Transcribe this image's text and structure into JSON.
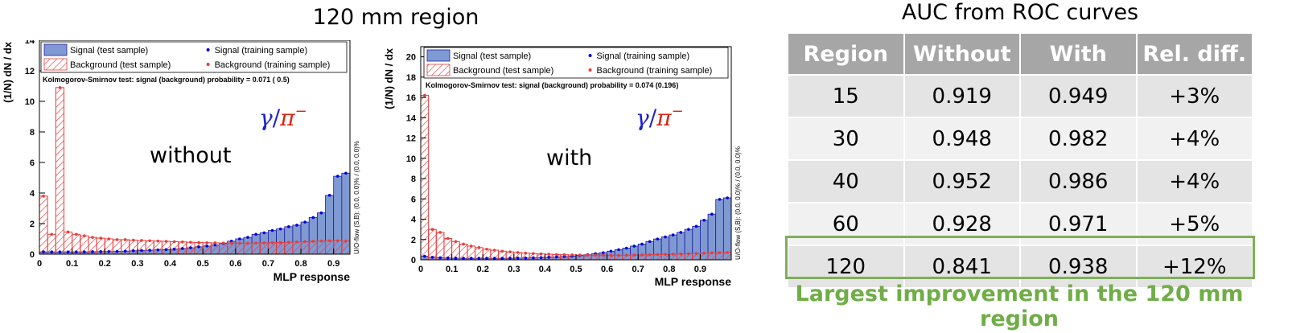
{
  "page": {
    "title": "120 mm region",
    "table_title": "AUC from ROC curves",
    "note": "Largest improvement in the 120 mm region"
  },
  "table": {
    "columns": [
      "Region",
      "Without",
      "With",
      "Rel. diff."
    ],
    "rows": [
      [
        "15",
        "0.919",
        "0.949",
        "+3%"
      ],
      [
        "30",
        "0.948",
        "0.982",
        "+4%"
      ],
      [
        "40",
        "0.952",
        "0.986",
        "+4%"
      ],
      [
        "60",
        "0.928",
        "0.971",
        "+5%"
      ],
      [
        "120",
        "0.841",
        "0.938",
        "+12%"
      ]
    ],
    "highlight_row": 4,
    "highlight_color": "#70ad47"
  },
  "colors": {
    "signal_fill": "#7f99d2",
    "signal_edge": "#1d1d9e",
    "signal_point": "#0000dd",
    "background": "#e83c3c",
    "gamma": "#1f1fcc",
    "pi": "#dd2211"
  },
  "chart_data": [
    {
      "type": "bar",
      "label": "without",
      "formula": {
        "gamma": "γ",
        "slash": "/",
        "pi": "π",
        "sup": "−"
      },
      "xlabel": "MLP response",
      "ylabel": "(1/N) dN / dx",
      "xlim": [
        0,
        0.95
      ],
      "ylim": [
        0,
        14
      ],
      "xticks": [
        "0",
        "0.1",
        "0.2",
        "0.3",
        "0.4",
        "0.5",
        "0.6",
        "0.7",
        "0.8",
        "0.9"
      ],
      "yticks": [
        "0",
        "2",
        "4",
        "6",
        "8",
        "10",
        "12",
        "14"
      ],
      "ks_text": "Kolmogorov-Smirnov test: signal (background) probability = 0.071 (  0.5)",
      "overflow_text": "U/O-flow (S,B): (0.0, 0.0)% / (0.0, 0.0)%",
      "legend": [
        "Signal (test sample)",
        "Signal (training sample)",
        "Background (test sample)",
        "Background (training sample)"
      ],
      "bin_width": 0.025,
      "signal": [
        0.15,
        0.15,
        0.15,
        0.15,
        0.15,
        0.15,
        0.16,
        0.17,
        0.17,
        0.18,
        0.2,
        0.22,
        0.24,
        0.26,
        0.28,
        0.3,
        0.33,
        0.37,
        0.42,
        0.48,
        0.53,
        0.6,
        0.7,
        0.85,
        1.0,
        1.1,
        1.3,
        1.4,
        1.55,
        1.65,
        1.8,
        1.9,
        2.1,
        2.4,
        2.7,
        3.85,
        5.1,
        5.3,
        1.6
      ],
      "background": [
        3.8,
        1.3,
        10.9,
        1.45,
        1.3,
        1.2,
        1.1,
        1.05,
        1.0,
        0.95,
        0.95,
        0.92,
        0.9,
        0.88,
        0.86,
        0.84,
        0.82,
        0.8,
        0.78,
        0.76,
        0.75,
        0.74,
        0.73,
        0.72,
        0.72,
        0.72,
        0.73,
        0.74,
        0.75,
        0.76,
        0.78,
        0.8,
        0.82,
        0.84,
        0.86,
        0.88,
        0.88,
        0.85,
        0.7
      ]
    },
    {
      "type": "bar",
      "label": "with",
      "formula": {
        "gamma": "γ",
        "slash": "/",
        "pi": "π",
        "sup": "−"
      },
      "xlabel": "MLP response",
      "ylabel": "(1/N) dN / dx",
      "xlim": [
        0,
        1.0
      ],
      "ylim": [
        0,
        21
      ],
      "xticks": [
        "0",
        "0.1",
        "0.2",
        "0.3",
        "0.4",
        "0.5",
        "0.6",
        "0.7",
        "0.8",
        "0.9"
      ],
      "yticks": [
        "0",
        "2",
        "4",
        "6",
        "8",
        "10",
        "12",
        "14",
        "16",
        "18",
        "20"
      ],
      "ks_text": "Kolmogorov-Smirnov test: signal (background) probability = 0.074 (0.196)",
      "overflow_text": "U/O-flow (S,B): (0.0, 0.0)% / (0.0, 0.0)%",
      "legend": [
        "Signal (test sample)",
        "Signal (training sample)",
        "Background (test sample)",
        "Background (training sample)"
      ],
      "bin_width": 0.025,
      "signal": [
        0.35,
        0.25,
        0.2,
        0.18,
        0.16,
        0.15,
        0.15,
        0.15,
        0.15,
        0.15,
        0.15,
        0.16,
        0.17,
        0.18,
        0.2,
        0.22,
        0.25,
        0.28,
        0.32,
        0.37,
        0.42,
        0.5,
        0.6,
        0.7,
        0.85,
        1.0,
        1.15,
        1.35,
        1.55,
        1.8,
        2.05,
        2.25,
        2.45,
        2.7,
        3.0,
        3.3,
        3.9,
        4.5,
        5.95,
        6.1
      ],
      "background": [
        16.2,
        3.0,
        2.7,
        2.1,
        1.8,
        1.55,
        1.35,
        1.2,
        1.05,
        0.95,
        0.85,
        0.78,
        0.72,
        0.66,
        0.62,
        0.58,
        0.55,
        0.52,
        0.5,
        0.48,
        0.47,
        0.46,
        0.45,
        0.45,
        0.45,
        0.45,
        0.46,
        0.47,
        0.48,
        0.5,
        0.52,
        0.54,
        0.56,
        0.58,
        0.6,
        0.62,
        0.65,
        0.68,
        0.7,
        0.72
      ]
    }
  ]
}
